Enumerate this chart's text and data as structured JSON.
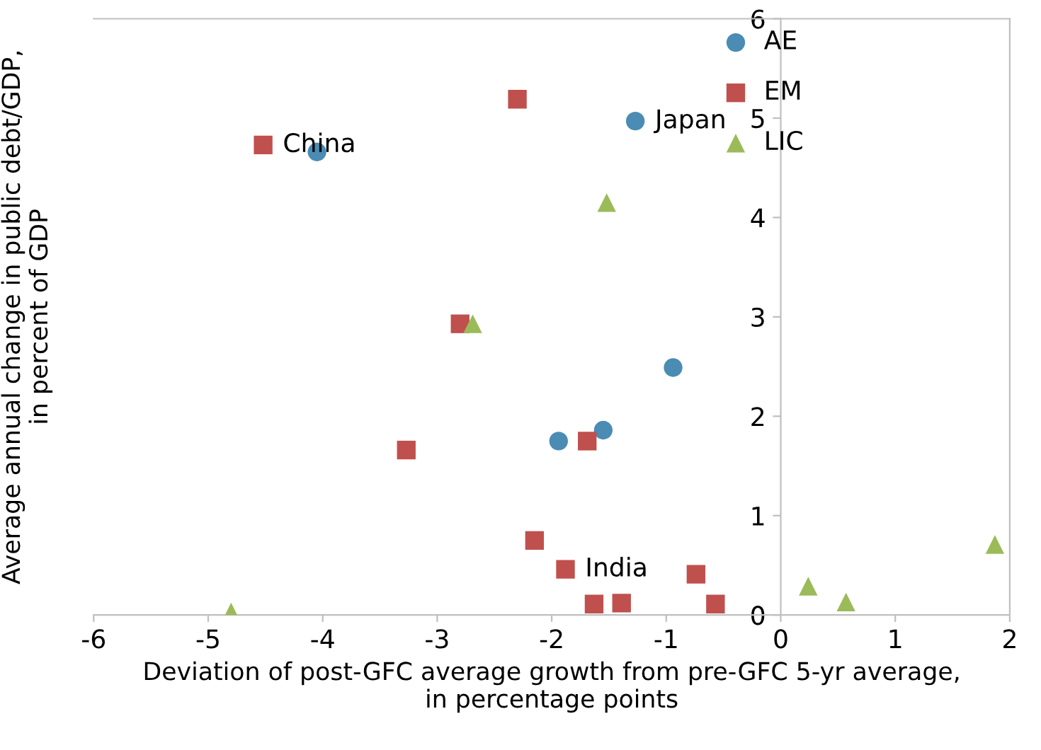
{
  "chart_data": {
    "type": "scatter",
    "xlabel": "Deviation of post-GFC average growth from pre-GFC 5-yr average,\nin percentage points",
    "ylabel": "Average annual change in public debt/GDP,\nin percent of GDP",
    "xlim": [
      -6,
      2
    ],
    "ylim": [
      0,
      6
    ],
    "xticks": [
      -6,
      -5,
      -4,
      -3,
      -2,
      -1,
      0,
      1,
      2
    ],
    "yticks": [
      0,
      1,
      2,
      3,
      4,
      5,
      6
    ],
    "grid": false,
    "legend": "top right",
    "series": [
      {
        "name": "AE",
        "color": "#4a8cb3",
        "marker": "circle",
        "x": [
          -4.05,
          -1.27,
          -0.94,
          -1.55,
          -1.94
        ],
        "values": [
          4.66,
          4.97,
          2.49,
          1.86,
          1.75
        ]
      },
      {
        "name": "EM",
        "color": "#c0504d",
        "marker": "square",
        "x": [
          -4.52,
          -2.3,
          -2.8,
          -3.27,
          -1.69,
          -2.15,
          -1.88,
          -1.63,
          -1.39,
          -0.74,
          -0.57
        ],
        "values": [
          4.73,
          5.19,
          2.93,
          1.66,
          1.75,
          0.75,
          0.46,
          0.11,
          0.12,
          0.41,
          0.11
        ]
      },
      {
        "name": "LIC",
        "color": "#9bbb59",
        "marker": "triangle",
        "x": [
          -1.52,
          -2.69,
          -4.8,
          0.24,
          0.57,
          1.87
        ],
        "values": [
          4.15,
          2.93,
          0.03,
          0.29,
          0.13,
          0.71
        ]
      }
    ],
    "annotations": [
      {
        "text": "China",
        "x": -4.52,
        "y": 4.73
      },
      {
        "text": "Japan",
        "x": -1.27,
        "y": 4.97
      },
      {
        "text": "India",
        "x": -1.88,
        "y": 0.46
      }
    ]
  }
}
